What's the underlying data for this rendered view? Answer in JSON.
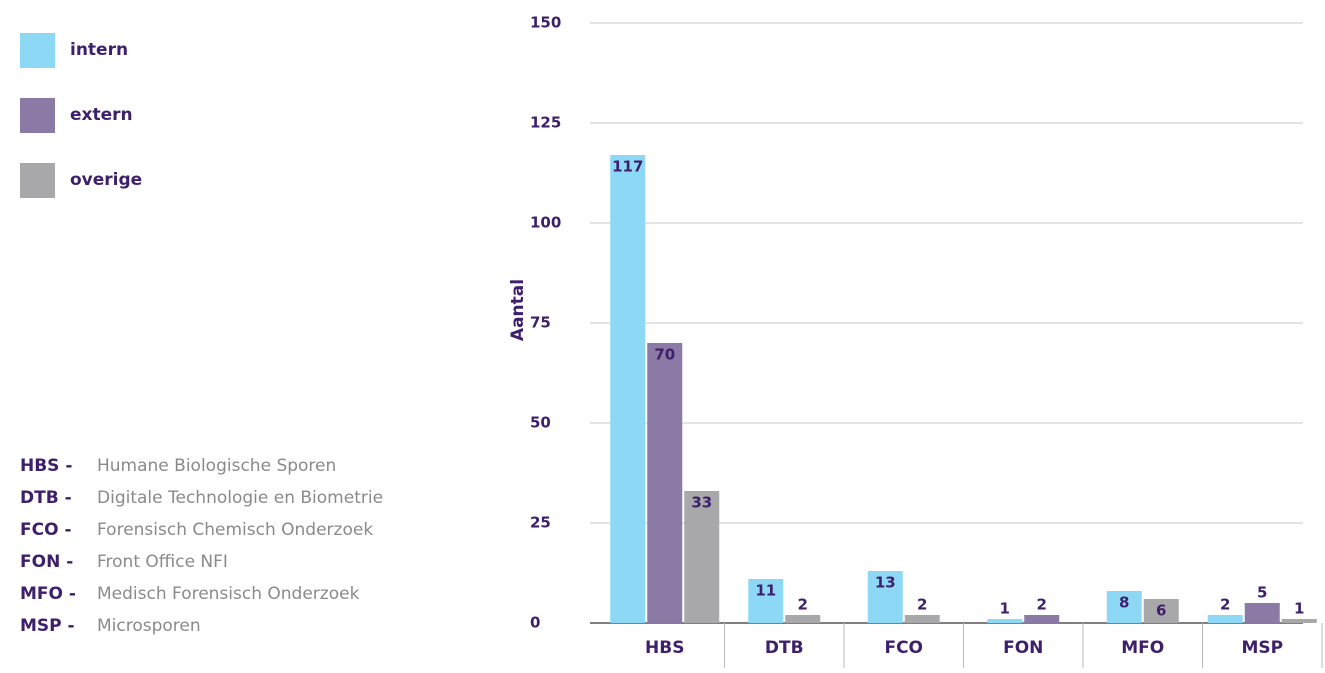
{
  "chart_data": {
    "type": "bar",
    "y_label": "Aantal",
    "categories": [
      "HBS",
      "DTB",
      "FCO",
      "FON",
      "MFO",
      "MSP"
    ],
    "series": [
      {
        "name": "intern",
        "color": "#8dd8f5",
        "values": [
          117,
          11,
          13,
          1,
          8,
          2
        ]
      },
      {
        "name": "extern",
        "color": "#8b7aa6",
        "values": [
          70,
          null,
          null,
          2,
          null,
          5
        ]
      },
      {
        "name": "overige",
        "color": "#a8a8ab",
        "values": [
          33,
          2,
          2,
          null,
          6,
          1
        ]
      }
    ],
    "ylim": [
      0,
      150
    ],
    "yticks": [
      0,
      25,
      50,
      75,
      100,
      125,
      150
    ],
    "grid": true,
    "abbreviations": [
      {
        "code": "HBS -",
        "name": "Humane Biologische Sporen"
      },
      {
        "code": "DTB -",
        "name": "Digitale Technologie en Biometrie"
      },
      {
        "code": "FCO -",
        "name": "Forensisch Chemisch Onderzoek"
      },
      {
        "code": "FON -",
        "name": "Front Office NFI"
      },
      {
        "code": "MFO -",
        "name": "Medisch Forensisch Onderzoek"
      },
      {
        "code": "MSP -",
        "name": "Microsporen"
      }
    ]
  }
}
